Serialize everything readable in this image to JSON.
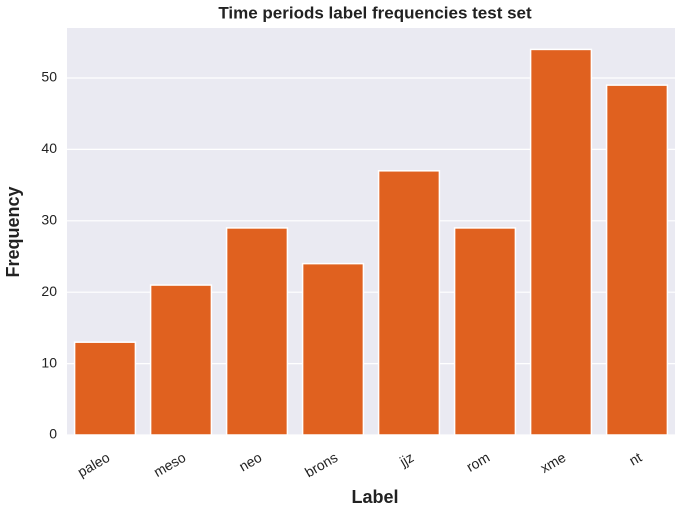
{
  "chart_data": {
    "type": "bar",
    "title": "Time periods label frequencies test set",
    "x_label": "Label",
    "y_label": "Frequency",
    "categories": [
      "paleo",
      "meso",
      "neo",
      "brons",
      "jjz",
      "rom",
      "xme",
      "nt"
    ],
    "values": [
      13,
      21,
      29,
      24,
      37,
      29,
      54,
      49
    ],
    "color": "#e0611f",
    "ylim": [
      0,
      57
    ],
    "yticks": [
      0,
      10,
      20,
      30,
      40,
      50
    ],
    "grid": true
  }
}
